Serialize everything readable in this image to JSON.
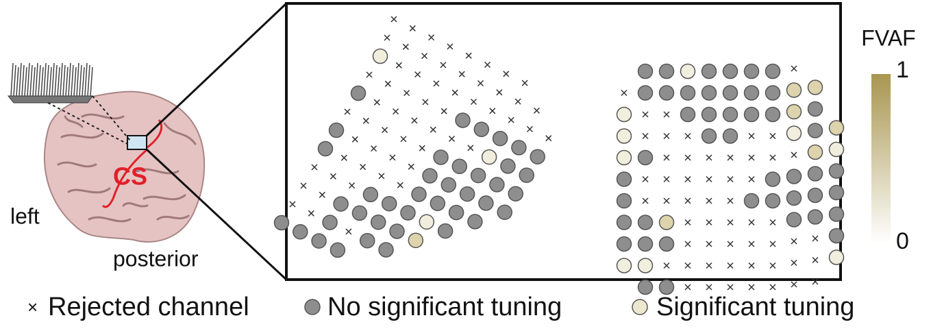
{
  "labels": {
    "left": "left",
    "posterior": "posterior",
    "sulcus": "CS"
  },
  "colorbar": {
    "title": "FVAF",
    "max": 1,
    "min": 0
  },
  "legend": [
    "Rejected channel",
    "No significant tuning",
    "Significant tuning"
  ]
}
